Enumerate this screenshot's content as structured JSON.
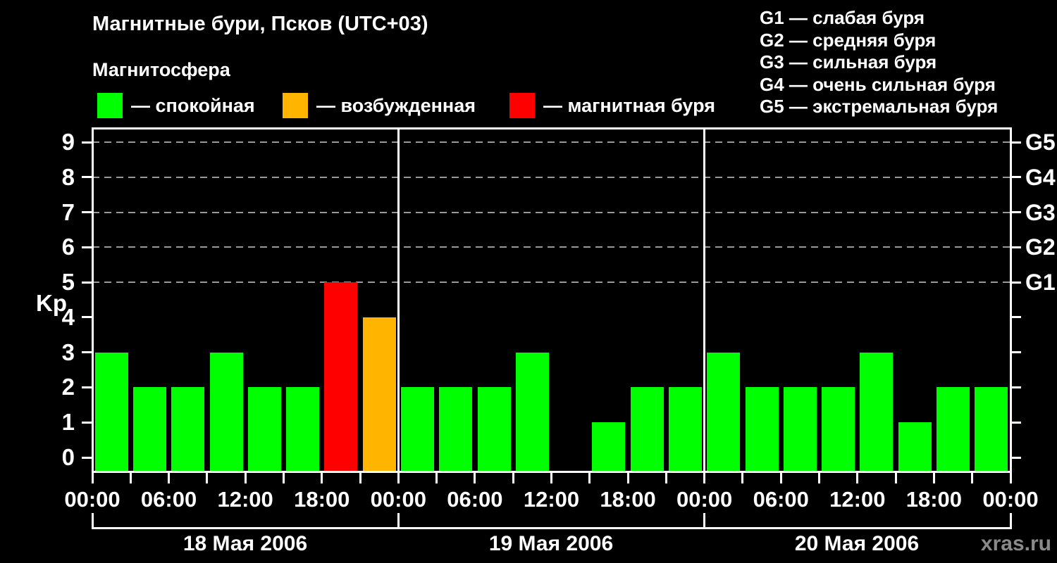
{
  "title": "Магнитные бури, Псков (UTC+03)",
  "subtitle": "Магнитосфера",
  "legend": {
    "items": [
      {
        "key": "quiet",
        "color": "#00ff00",
        "label": "— спокойная"
      },
      {
        "key": "excited",
        "color": "#ffb400",
        "label": "— возбужденная"
      },
      {
        "key": "storm",
        "color": "#ff0000",
        "label": "— магнитная буря"
      }
    ]
  },
  "g_scale_legend": [
    "G1 — слабая буря",
    "G2 — средняя буря",
    "G3 — сильная буря",
    "G4 — очень сильная буря",
    "G5 — экстремальная буря"
  ],
  "watermark": "xras.ru",
  "colors": {
    "quiet": "#00ff00",
    "excited": "#ffb400",
    "storm": "#ff0000",
    "background": "#000000",
    "axis": "#ffffff",
    "grid": "#999999",
    "watermark": "#8a8a8a"
  },
  "chart_data": {
    "type": "bar",
    "title": "Магнитные бури, Псков (UTC+03)",
    "ylabel": "Kp",
    "ylim": [
      0,
      9
    ],
    "yticks": [
      0,
      1,
      2,
      3,
      4,
      5,
      6,
      7,
      8,
      9
    ],
    "gridlines_at": [
      5,
      6,
      7,
      8,
      9
    ],
    "right_axis": {
      "labels": [
        "G1",
        "G2",
        "G3",
        "G4",
        "G5"
      ],
      "values": [
        5,
        6,
        7,
        8,
        9
      ]
    },
    "x_label_times": [
      "00:00",
      "06:00",
      "12:00",
      "18:00"
    ],
    "bar_interval_hours": 3,
    "color_rule": "Kp<=3 quiet(green), Kp=4 excited(orange), Kp>=5 storm(red); Kp=0 no bar",
    "days": [
      {
        "date": "18 Мая 2006",
        "values": [
          3,
          2,
          2,
          3,
          2,
          2,
          5,
          4
        ],
        "colors": [
          "quiet",
          "quiet",
          "quiet",
          "quiet",
          "quiet",
          "quiet",
          "storm",
          "excited"
        ]
      },
      {
        "date": "19 Мая 2006",
        "values": [
          2,
          2,
          2,
          3,
          0,
          1,
          2,
          2
        ],
        "colors": [
          "quiet",
          "quiet",
          "quiet",
          "quiet",
          "quiet",
          "quiet",
          "quiet",
          "quiet"
        ]
      },
      {
        "date": "20 Мая 2006",
        "values": [
          3,
          2,
          2,
          2,
          3,
          1,
          2,
          2
        ],
        "colors": [
          "quiet",
          "quiet",
          "quiet",
          "quiet",
          "quiet",
          "quiet",
          "quiet",
          "quiet"
        ]
      }
    ]
  }
}
